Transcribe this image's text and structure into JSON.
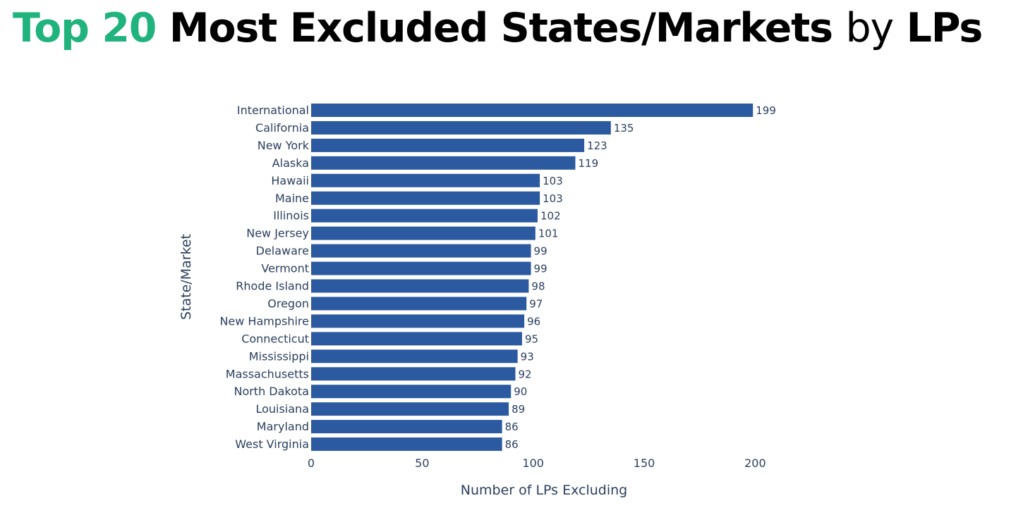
{
  "title": {
    "accent": "Top 20",
    "main": "Most Excluded States/Markets",
    "connector": "by",
    "tail": "LPs",
    "accent_color": "#20b37e"
  },
  "chart_data": {
    "type": "bar",
    "orientation": "horizontal",
    "categories": [
      "International",
      "California",
      "New York",
      "Alaska",
      "Hawaii",
      "Maine",
      "Illinois",
      "New Jersey",
      "Delaware",
      "Vermont",
      "Rhode Island",
      "Oregon",
      "New Hampshire",
      "Connecticut",
      "Mississippi",
      "Massachusetts",
      "North Dakota",
      "Louisiana",
      "Maryland",
      "West Virginia"
    ],
    "values": [
      199,
      135,
      123,
      119,
      103,
      103,
      102,
      101,
      99,
      99,
      98,
      97,
      96,
      95,
      93,
      92,
      90,
      89,
      86,
      86
    ],
    "data_labels": [
      "199",
      "135",
      "123",
      "119",
      "103",
      "103",
      "102",
      "101",
      "99",
      "99",
      "98",
      "97",
      "96",
      "95",
      "93",
      "92",
      "90",
      "89",
      "86",
      "86"
    ],
    "xlabel": "Number of LPs Excluding",
    "ylabel": "State/Market",
    "xlim": [
      0,
      210
    ],
    "xticks": [
      0,
      50,
      100,
      150,
      200
    ],
    "xtick_labels": [
      "0",
      "50",
      "100",
      "150",
      "200"
    ],
    "bar_color": "#2c5aa0",
    "grid": false,
    "legend": "none"
  }
}
